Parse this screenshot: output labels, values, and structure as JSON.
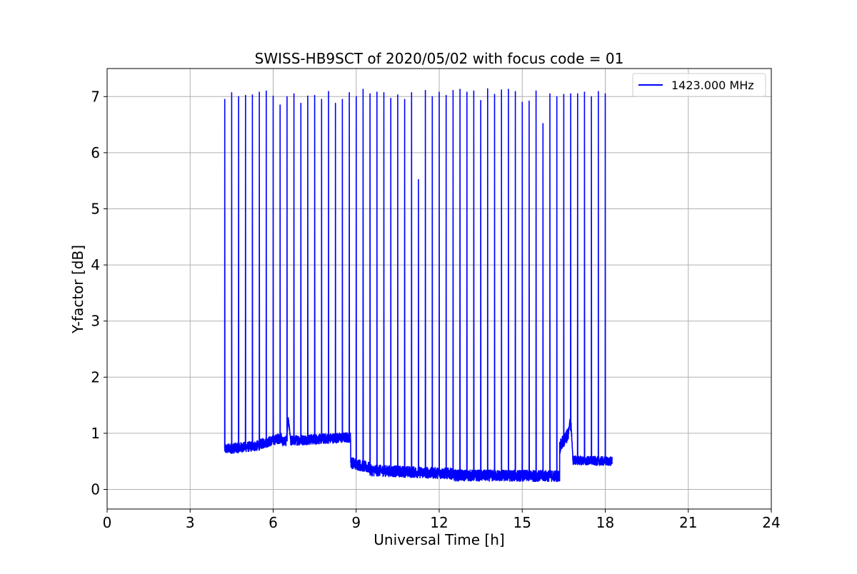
{
  "chart_data": {
    "type": "line",
    "title": "SWISS-HB9SCT of 2020/05/02 with focus code = 01",
    "xlabel": "Universal Time [h]",
    "ylabel": "Y-factor [dB]",
    "xlim": [
      0,
      24
    ],
    "ylim": [
      -0.35,
      7.5
    ],
    "xticks": [
      0,
      3,
      6,
      9,
      12,
      15,
      18,
      21,
      24
    ],
    "yticks": [
      0,
      1,
      2,
      3,
      4,
      5,
      6,
      7
    ],
    "grid": true,
    "legend_position": "top-right",
    "series": [
      {
        "name": "1423.000 MHz",
        "color": "#0000ff",
        "baseline": [
          {
            "start": 4.25,
            "end": 5.5,
            "y0": 0.72,
            "y1": 0.78,
            "noise": 0.09
          },
          {
            "start": 5.5,
            "end": 6.3,
            "y0": 0.8,
            "y1": 0.92,
            "noise": 0.09
          },
          {
            "start": 6.3,
            "end": 8.8,
            "y0": 0.86,
            "y1": 0.93,
            "noise": 0.09
          },
          {
            "start": 8.8,
            "end": 9.5,
            "y0": 0.48,
            "y1": 0.38,
            "noise": 0.1
          },
          {
            "start": 9.5,
            "end": 12.5,
            "y0": 0.34,
            "y1": 0.28,
            "noise": 0.1
          },
          {
            "start": 12.5,
            "end": 16.35,
            "y0": 0.25,
            "y1": 0.24,
            "noise": 0.1
          },
          {
            "start": 16.35,
            "end": 16.75,
            "y0": 0.75,
            "y1": 1.05,
            "noise": 0.12
          },
          {
            "start": 16.75,
            "end": 18.25,
            "y0": 0.52,
            "y1": 0.5,
            "noise": 0.08
          }
        ],
        "peaks": [
          {
            "x": 4.25,
            "y": 6.95
          },
          {
            "x": 4.5,
            "y": 7.07
          },
          {
            "x": 4.75,
            "y": 7.0
          },
          {
            "x": 5.0,
            "y": 7.02
          },
          {
            "x": 5.25,
            "y": 7.03
          },
          {
            "x": 5.5,
            "y": 7.08
          },
          {
            "x": 5.75,
            "y": 7.1
          },
          {
            "x": 6.0,
            "y": 7.01
          },
          {
            "x": 6.25,
            "y": 6.85
          },
          {
            "x": 6.5,
            "y": 7.0
          },
          {
            "x": 6.75,
            "y": 7.05
          },
          {
            "x": 7.0,
            "y": 6.88
          },
          {
            "x": 7.25,
            "y": 7.01
          },
          {
            "x": 7.5,
            "y": 7.02
          },
          {
            "x": 7.75,
            "y": 6.95
          },
          {
            "x": 8.0,
            "y": 7.09
          },
          {
            "x": 8.25,
            "y": 6.88
          },
          {
            "x": 8.5,
            "y": 6.95
          },
          {
            "x": 8.75,
            "y": 7.07
          },
          {
            "x": 9.0,
            "y": 7.0
          },
          {
            "x": 9.25,
            "y": 7.13
          },
          {
            "x": 9.5,
            "y": 7.05
          },
          {
            "x": 9.75,
            "y": 7.08
          },
          {
            "x": 10.0,
            "y": 7.07
          },
          {
            "x": 10.25,
            "y": 6.97
          },
          {
            "x": 10.5,
            "y": 7.03
          },
          {
            "x": 10.75,
            "y": 6.95
          },
          {
            "x": 11.0,
            "y": 7.07
          },
          {
            "x": 11.25,
            "y": 5.52
          },
          {
            "x": 11.5,
            "y": 7.11
          },
          {
            "x": 11.75,
            "y": 7.0
          },
          {
            "x": 12.0,
            "y": 7.08
          },
          {
            "x": 12.25,
            "y": 7.02
          },
          {
            "x": 12.5,
            "y": 7.11
          },
          {
            "x": 12.75,
            "y": 7.13
          },
          {
            "x": 13.0,
            "y": 7.08
          },
          {
            "x": 13.25,
            "y": 7.1
          },
          {
            "x": 13.5,
            "y": 6.93
          },
          {
            "x": 13.75,
            "y": 7.14
          },
          {
            "x": 14.0,
            "y": 7.04
          },
          {
            "x": 14.25,
            "y": 7.12
          },
          {
            "x": 14.5,
            "y": 7.13
          },
          {
            "x": 14.75,
            "y": 7.09
          },
          {
            "x": 15.0,
            "y": 6.9
          },
          {
            "x": 15.25,
            "y": 6.92
          },
          {
            "x": 15.5,
            "y": 7.1
          },
          {
            "x": 15.75,
            "y": 6.52
          },
          {
            "x": 16.0,
            "y": 7.05
          },
          {
            "x": 16.25,
            "y": 7.0
          },
          {
            "x": 16.5,
            "y": 7.04
          },
          {
            "x": 16.75,
            "y": 7.05
          },
          {
            "x": 17.0,
            "y": 7.05
          },
          {
            "x": 17.25,
            "y": 7.08
          },
          {
            "x": 17.5,
            "y": 7.0
          },
          {
            "x": 17.75,
            "y": 7.09
          },
          {
            "x": 18.0,
            "y": 7.05
          }
        ],
        "bumps": [
          {
            "x": 6.55,
            "y": 1.25
          },
          {
            "x": 16.75,
            "y": 1.3
          }
        ]
      }
    ]
  }
}
